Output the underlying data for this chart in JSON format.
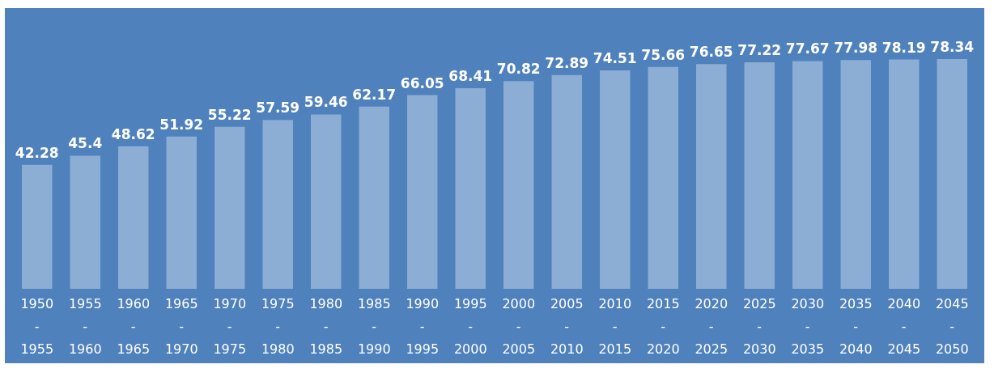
{
  "chart_data": {
    "type": "bar",
    "categories": [
      "1950 - 1955",
      "1955 - 1960",
      "1960 - 1965",
      "1965 - 1970",
      "1970 - 1975",
      "1975 - 1980",
      "1980 - 1985",
      "1985 - 1990",
      "1990 - 1995",
      "1995 - 2000",
      "2000 - 2005",
      "2005 - 2010",
      "2010 - 2015",
      "2015 - 2020",
      "2020 - 2025",
      "2025 - 2030",
      "2030 - 2035",
      "2035 - 2040",
      "2040 - 2045",
      "2045 - 2050"
    ],
    "values": [
      42.28,
      45.4,
      48.62,
      51.92,
      55.22,
      57.59,
      59.46,
      62.17,
      66.05,
      68.41,
      70.82,
      72.89,
      74.51,
      75.66,
      76.65,
      77.22,
      77.67,
      77.98,
      78.19,
      78.34
    ],
    "color": "#ffffff",
    "data_labels": true
  }
}
